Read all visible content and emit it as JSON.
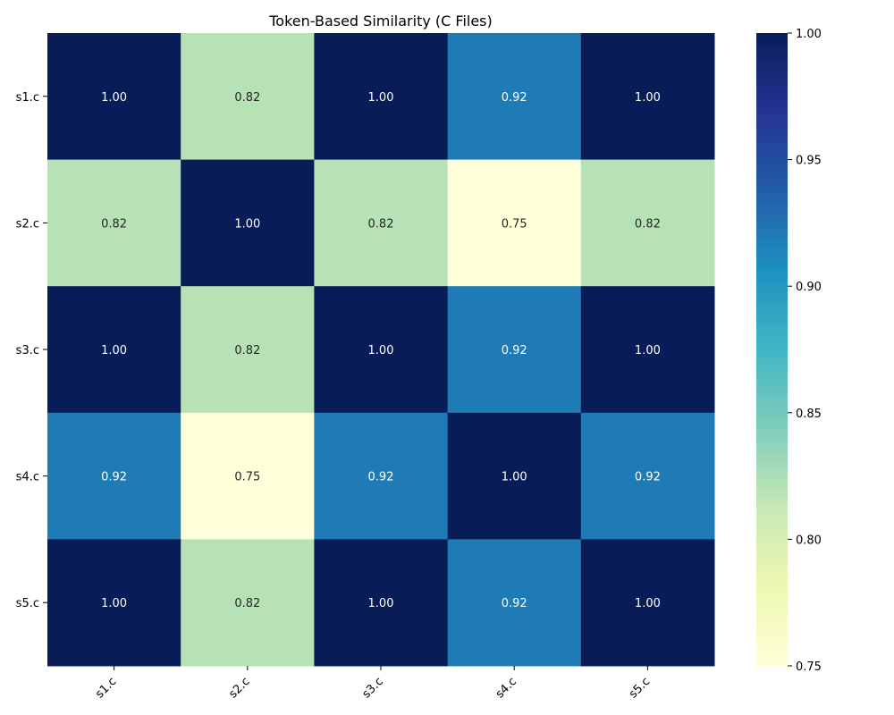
{
  "chart_data": {
    "type": "heatmap",
    "title": "Token-Based Similarity (C Files)",
    "xlabel": "",
    "ylabel": "",
    "x_categories": [
      "s1.c",
      "s2.c",
      "s3.c",
      "s4.c",
      "s5.c"
    ],
    "y_categories": [
      "s1.c",
      "s2.c",
      "s3.c",
      "s4.c",
      "s5.c"
    ],
    "values": [
      [
        1.0,
        0.82,
        1.0,
        0.92,
        1.0
      ],
      [
        0.82,
        1.0,
        0.82,
        0.75,
        0.82
      ],
      [
        1.0,
        0.82,
        1.0,
        0.92,
        1.0
      ],
      [
        0.92,
        0.75,
        0.92,
        1.0,
        0.92
      ],
      [
        1.0,
        0.82,
        1.0,
        0.92,
        1.0
      ]
    ],
    "value_format": "0.00",
    "colormap": "YlGnBu",
    "vmin": 0.75,
    "vmax": 1.0,
    "colorbar_ticks": [
      "0.75",
      "0.80",
      "0.85",
      "0.90",
      "0.95",
      "1.00"
    ],
    "grid": false,
    "x_tick_rotation": "45deg"
  }
}
